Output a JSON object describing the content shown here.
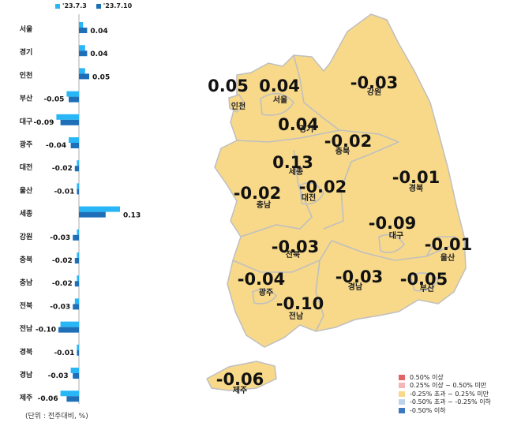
{
  "colors": {
    "prev_week": "#29B6F6",
    "curr_week": "#1E6FB8",
    "map_fill": "#F8D98A",
    "map_stroke": "#BFBFBF"
  },
  "top_legend": {
    "prev_label": "'23.7.3",
    "curr_label": "'23.7.10"
  },
  "unit_note": "(단위 : 전주대비, %)",
  "chart_data": [
    {
      "type": "bar",
      "orientation": "horizontal",
      "categories": [
        "서울",
        "경기",
        "인천",
        "부산",
        "대구",
        "광주",
        "대전",
        "울산",
        "세종",
        "강원",
        "충북",
        "충남",
        "전북",
        "전남",
        "경북",
        "경남",
        "제주"
      ],
      "series": [
        {
          "name": "'23.7.3",
          "values": [
            0.02,
            0.03,
            0.03,
            -0.06,
            -0.11,
            -0.05,
            -0.01,
            -0.01,
            0.2,
            -0.01,
            -0.01,
            -0.01,
            -0.02,
            -0.09,
            -0.01,
            -0.04,
            -0.09
          ]
        },
        {
          "name": "'23.7.10",
          "values": [
            0.04,
            0.04,
            0.05,
            -0.05,
            -0.09,
            -0.04,
            -0.02,
            -0.01,
            0.13,
            -0.03,
            -0.02,
            -0.02,
            -0.03,
            -0.1,
            -0.01,
            -0.03,
            -0.06
          ]
        }
      ],
      "data_labels": [
        "0.04",
        "0.04",
        "0.05",
        "-0.05",
        "-0.09",
        "-0.04",
        "-0.02",
        "-0.01",
        "0.13",
        "-0.03",
        "-0.02",
        "-0.02",
        "-0.03",
        "-0.10",
        "-0.01",
        "-0.03",
        "-0.06"
      ],
      "xlim": [
        -0.12,
        0.22
      ]
    },
    {
      "type": "map",
      "regions": [
        {
          "name": "인천",
          "value": "0.05"
        },
        {
          "name": "서울",
          "value": "0.04"
        },
        {
          "name": "강원",
          "value": "-0.03"
        },
        {
          "name": "경기",
          "value": "0.04"
        },
        {
          "name": "충북",
          "value": "-0.02"
        },
        {
          "name": "세종",
          "value": "0.13"
        },
        {
          "name": "충남",
          "value": "-0.02"
        },
        {
          "name": "대전",
          "value": "-0.02"
        },
        {
          "name": "경북",
          "value": "-0.01"
        },
        {
          "name": "대구",
          "value": "-0.09"
        },
        {
          "name": "울산",
          "value": "-0.01"
        },
        {
          "name": "전북",
          "value": "-0.03"
        },
        {
          "name": "광주",
          "value": "-0.04"
        },
        {
          "name": "경남",
          "value": "-0.03"
        },
        {
          "name": "부산",
          "value": "-0.05"
        },
        {
          "name": "전남",
          "value": "-0.10"
        },
        {
          "name": "제주",
          "value": "-0.06"
        }
      ],
      "legend": [
        {
          "label": "0.50% 이상",
          "color": "#E06666"
        },
        {
          "label": "0.25% 이상 ~ 0.50% 미만",
          "color": "#F4B6B6"
        },
        {
          "label": "-0.25% 초과 ~ 0.25% 미만",
          "color": "#F8D98A"
        },
        {
          "label": "-0.50% 초과 ~ -0.25% 이하",
          "color": "#BCD3EA"
        },
        {
          "label": "-0.50% 이하",
          "color": "#3C78C0"
        }
      ]
    }
  ]
}
